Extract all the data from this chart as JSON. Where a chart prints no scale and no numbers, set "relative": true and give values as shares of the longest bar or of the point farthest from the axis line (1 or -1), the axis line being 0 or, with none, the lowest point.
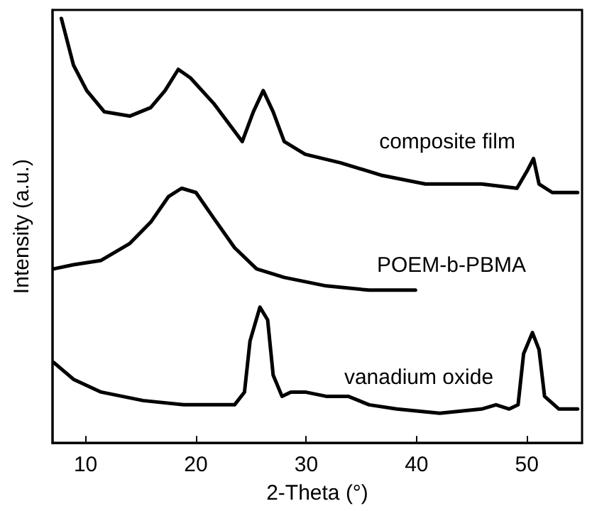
{
  "chart_data": {
    "type": "line",
    "xlabel": "2-Theta (°)",
    "ylabel": "Intensity (a.u.)",
    "relative": true,
    "xlim": [
      7,
      55
    ],
    "xticks": [
      10,
      20,
      30,
      40,
      50
    ],
    "grid": false,
    "legend": false,
    "marker": "none",
    "line_style": "solid",
    "series": [
      {
        "name": "composite film",
        "color": "#000000",
        "x": [
          7.8,
          8.9,
          10.1,
          11.7,
          14.0,
          15.9,
          17.2,
          18.4,
          19.5,
          21.6,
          24.2,
          25.2,
          26.1,
          27.0,
          28.0,
          29.9,
          33.1,
          36.9,
          40.8,
          45.9,
          49.1,
          50.0,
          50.6,
          51.1,
          52.3,
          54.6
        ],
        "values": [
          1.0,
          0.89,
          0.83,
          0.78,
          0.77,
          0.79,
          0.83,
          0.88,
          0.86,
          0.8,
          0.71,
          0.78,
          0.83,
          0.78,
          0.71,
          0.68,
          0.66,
          0.63,
          0.61,
          0.61,
          0.6,
          0.64,
          0.67,
          0.61,
          0.59,
          0.59
        ]
      },
      {
        "name": "POEM-b-PBMA",
        "color": "#000000",
        "x": [
          7.1,
          8.9,
          11.4,
          14.0,
          15.9,
          17.5,
          18.7,
          20.0,
          21.6,
          23.5,
          25.5,
          28.0,
          31.8,
          35.7,
          39.9
        ],
        "values": [
          0.41,
          0.42,
          0.43,
          0.47,
          0.52,
          0.58,
          0.6,
          0.59,
          0.53,
          0.46,
          0.41,
          0.39,
          0.37,
          0.36,
          0.36
        ]
      },
      {
        "name": "vanadium oxide",
        "color": "#000000",
        "x": [
          7.1,
          8.9,
          11.4,
          15.2,
          18.9,
          23.5,
          24.4,
          24.9,
          25.8,
          26.5,
          27.0,
          27.8,
          28.6,
          29.9,
          31.8,
          33.8,
          35.7,
          38.2,
          42.1,
          45.9,
          47.2,
          48.4,
          49.2,
          49.7,
          50.5,
          51.1,
          51.6,
          52.9,
          54.6
        ],
        "values": [
          0.19,
          0.15,
          0.12,
          0.1,
          0.09,
          0.09,
          0.12,
          0.24,
          0.32,
          0.29,
          0.16,
          0.11,
          0.12,
          0.12,
          0.11,
          0.11,
          0.09,
          0.08,
          0.07,
          0.08,
          0.09,
          0.08,
          0.09,
          0.21,
          0.26,
          0.22,
          0.11,
          0.08,
          0.08
        ]
      }
    ]
  }
}
